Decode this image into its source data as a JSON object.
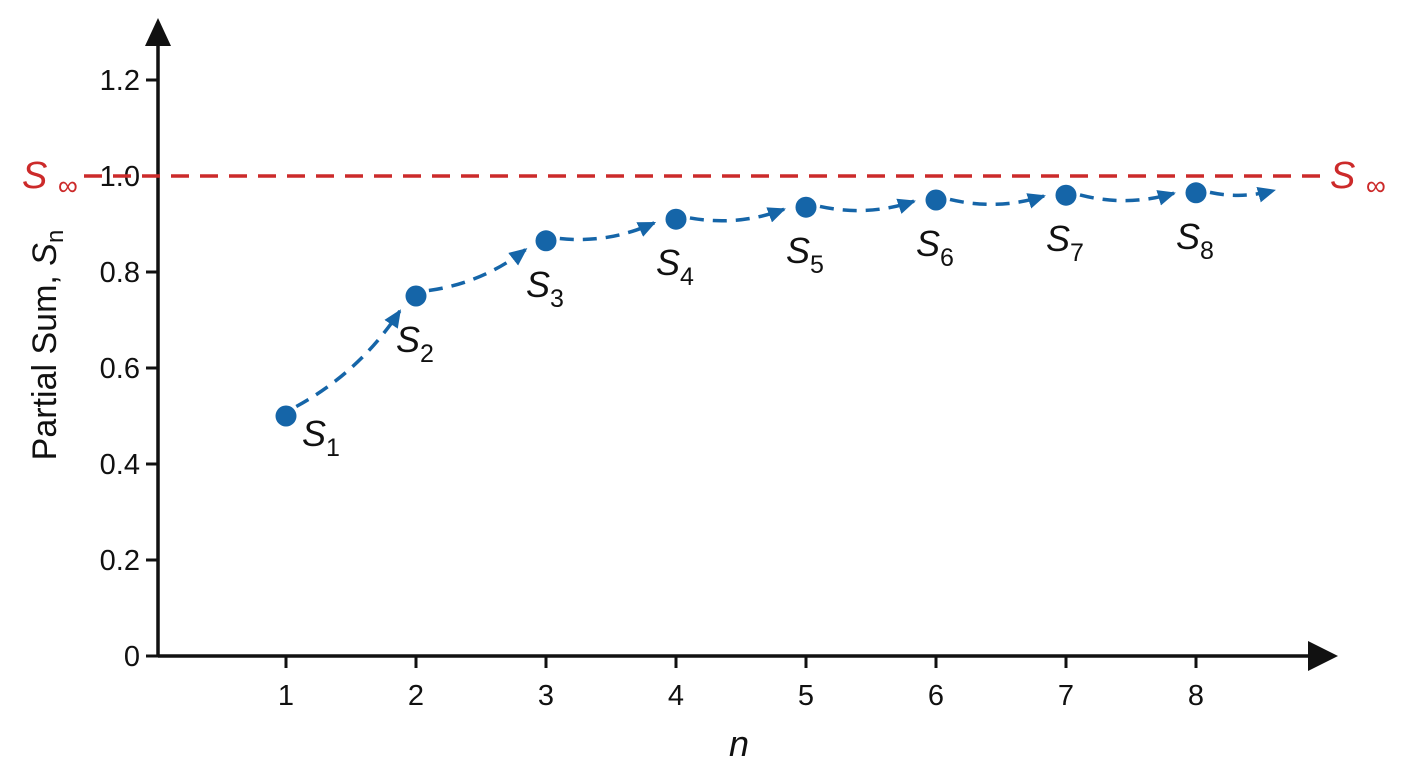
{
  "chart_data": {
    "type": "scatter",
    "xlabel": "n",
    "ylabel": {
      "text": "Partial Sum, ",
      "symbol": "S",
      "subscript": "n"
    },
    "x_ticks": [
      "1",
      "2",
      "3",
      "4",
      "5",
      "6",
      "7",
      "8"
    ],
    "y_ticks": [
      "0",
      "0.2",
      "0.4",
      "0.6",
      "0.8",
      "1.0",
      "1.2"
    ],
    "xlim": [
      0.05,
      9.1
    ],
    "ylim": [
      0,
      1.3
    ],
    "grid": false,
    "series": [
      {
        "x": [
          1,
          2,
          3,
          4,
          5,
          6,
          7,
          8
        ],
        "y": [
          0.5,
          0.75,
          0.865,
          0.91,
          0.935,
          0.95,
          0.96,
          0.965
        ],
        "labels": [
          {
            "symbol": "S",
            "subscript": "1"
          },
          {
            "symbol": "S",
            "subscript": "2"
          },
          {
            "symbol": "S",
            "subscript": "3"
          },
          {
            "symbol": "S",
            "subscript": "4"
          },
          {
            "symbol": "S",
            "subscript": "5"
          },
          {
            "symbol": "S",
            "subscript": "6"
          },
          {
            "symbol": "S",
            "subscript": "7"
          },
          {
            "symbol": "S",
            "subscript": "8"
          }
        ],
        "color": "#1565a8",
        "connector": "dashed-arrows",
        "trend_end_x": 8.6,
        "trend_end_y": 0.97
      }
    ],
    "reference_line": {
      "y": 1.0,
      "style": "dashed",
      "color": "#cc2a2a",
      "label_left": {
        "symbol": "S",
        "subscript": "∞"
      },
      "label_right": {
        "symbol": "S",
        "subscript": "∞"
      }
    }
  }
}
